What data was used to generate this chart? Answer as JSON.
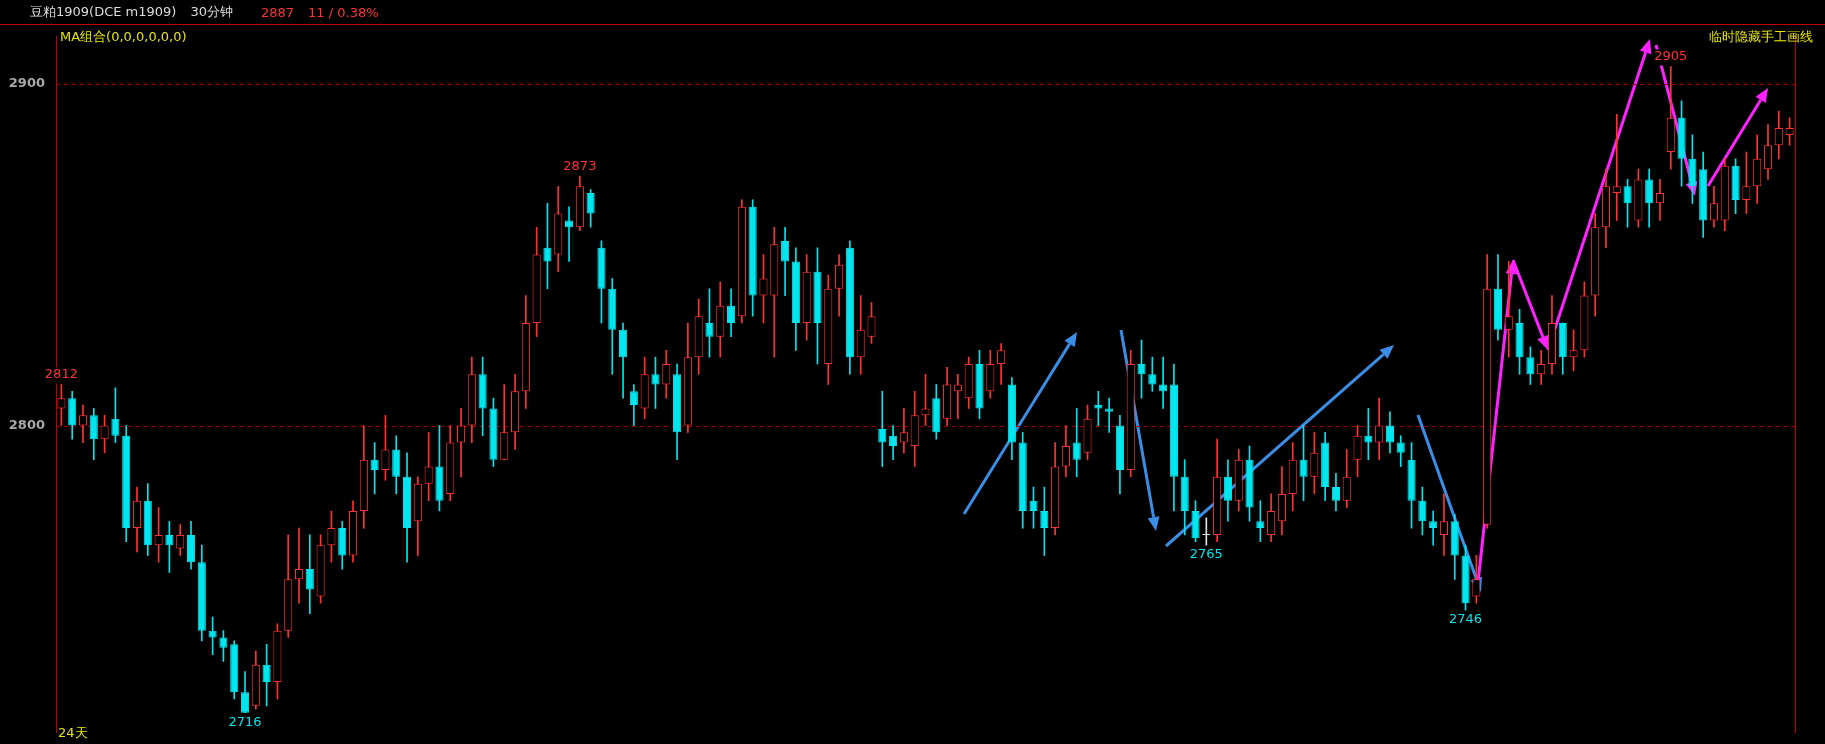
{
  "chart_data": {
    "type": "candlestick",
    "title": "豆粕1909(DCE m1909)",
    "subtitle": "30分钟",
    "annotations": [
      "2887",
      "11 / 0.38%",
      "MA组合(0,0,0,0,0,0)",
      "临时隐藏手工画线",
      "24天",
      {
        "text": "2812",
        "y": 2812
      },
      {
        "text": "2716",
        "y": 2716
      },
      {
        "text": "2873",
        "y": 2873
      },
      {
        "text": "2765",
        "y": 2765
      },
      {
        "text": "2746",
        "y": 2746
      },
      {
        "text": "2905",
        "y": 2905
      }
    ],
    "categories": [
      null,
      null,
      null,
      null,
      null,
      null,
      null,
      null,
      null,
      null,
      null,
      null,
      null,
      null,
      null,
      null,
      null,
      null,
      null,
      null,
      null,
      null,
      null,
      null,
      null,
      null,
      null,
      null,
      null,
      null,
      null,
      null,
      null,
      null,
      null,
      null,
      null,
      null,
      null,
      null,
      null,
      null,
      null,
      null,
      null,
      null,
      null,
      null,
      null,
      null,
      null,
      null,
      null,
      null,
      null,
      null,
      null,
      null,
      null,
      null,
      null,
      null,
      null,
      null,
      null,
      null,
      null,
      null,
      null,
      null,
      null,
      null,
      null,
      null,
      null,
      null,
      null,
      null,
      null,
      null,
      null,
      null,
      null,
      null,
      null,
      null,
      null,
      null,
      null,
      null,
      null,
      null,
      null,
      null,
      null,
      null,
      null,
      null,
      null,
      null,
      null,
      null,
      null,
      null,
      null,
      null,
      null,
      null,
      null,
      null,
      null,
      null,
      null,
      null,
      null,
      null,
      null,
      null,
      null,
      null,
      null,
      null,
      null,
      null,
      null,
      null,
      null,
      null,
      null,
      null,
      null,
      null,
      null,
      null,
      null,
      null,
      null,
      null,
      null,
      null,
      null,
      null,
      null,
      null,
      null,
      null,
      null,
      null,
      null,
      null,
      null,
      null,
      null,
      null,
      null,
      null,
      null,
      null,
      null,
      null,
      null
    ],
    "ohlc": [
      [
        2805,
        2812,
        2800,
        2808
      ],
      [
        2808,
        2810,
        2796,
        2800
      ],
      [
        2800,
        2806,
        2795,
        2803
      ],
      [
        2803,
        2805,
        2790,
        2796
      ],
      [
        2796,
        2803,
        2792,
        2800
      ],
      [
        2802,
        2811,
        2795,
        2797
      ],
      [
        2797,
        2800,
        2766,
        2770
      ],
      [
        2770,
        2782,
        2763,
        2778
      ],
      [
        2778,
        2783,
        2762,
        2765
      ],
      [
        2765,
        2776,
        2760,
        2768
      ],
      [
        2768,
        2772,
        2757,
        2765
      ],
      [
        2764,
        2771,
        2762,
        2768
      ],
      [
        2768,
        2772,
        2758,
        2760
      ],
      [
        2760,
        2765,
        2737,
        2740
      ],
      [
        2740,
        2744,
        2733,
        2738
      ],
      [
        2738,
        2740,
        2731,
        2735
      ],
      [
        2736,
        2737,
        2720,
        2722
      ],
      [
        2722,
        2728,
        2716,
        2716
      ],
      [
        2718,
        2734,
        2717,
        2730
      ],
      [
        2730,
        2736,
        2718,
        2725
      ],
      [
        2725,
        2742,
        2720,
        2740
      ],
      [
        2740,
        2768,
        2738,
        2755
      ],
      [
        2755,
        2770,
        2748,
        2758
      ],
      [
        2758,
        2768,
        2745,
        2752
      ],
      [
        2750,
        2768,
        2748,
        2765
      ],
      [
        2765,
        2775,
        2760,
        2770
      ],
      [
        2770,
        2772,
        2758,
        2762
      ],
      [
        2762,
        2778,
        2760,
        2775
      ],
      [
        2775,
        2800,
        2770,
        2790
      ],
      [
        2790,
        2795,
        2780,
        2787
      ],
      [
        2787,
        2803,
        2784,
        2793
      ],
      [
        2793,
        2797,
        2780,
        2785
      ],
      [
        2785,
        2792,
        2760,
        2770
      ],
      [
        2772,
        2785,
        2762,
        2783
      ],
      [
        2783,
        2798,
        2778,
        2788
      ],
      [
        2788,
        2800,
        2775,
        2778
      ],
      [
        2780,
        2800,
        2778,
        2795
      ],
      [
        2795,
        2805,
        2785,
        2800
      ],
      [
        2800,
        2820,
        2795,
        2815
      ],
      [
        2815,
        2820,
        2797,
        2805
      ],
      [
        2805,
        2808,
        2788,
        2790
      ],
      [
        2790,
        2812,
        2790,
        2798
      ],
      [
        2798,
        2815,
        2793,
        2810
      ],
      [
        2810,
        2838,
        2805,
        2830
      ],
      [
        2830,
        2858,
        2826,
        2850
      ],
      [
        2852,
        2865,
        2840,
        2848
      ],
      [
        2850,
        2870,
        2845,
        2862
      ],
      [
        2860,
        2864,
        2848,
        2858
      ],
      [
        2858,
        2873,
        2857,
        2870
      ],
      [
        2868,
        2869,
        2858,
        2862
      ],
      [
        2852,
        2854,
        2830,
        2840
      ],
      [
        2840,
        2843,
        2815,
        2828
      ],
      [
        2828,
        2830,
        2808,
        2820
      ],
      [
        2810,
        2812,
        2800,
        2806
      ],
      [
        2805,
        2820,
        2802,
        2815
      ],
      [
        2815,
        2820,
        2805,
        2812
      ],
      [
        2812,
        2822,
        2808,
        2818
      ],
      [
        2815,
        2818,
        2790,
        2798
      ],
      [
        2800,
        2830,
        2798,
        2820
      ],
      [
        2820,
        2837,
        2815,
        2832
      ],
      [
        2830,
        2840,
        2820,
        2826
      ],
      [
        2826,
        2842,
        2820,
        2835
      ],
      [
        2835,
        2840,
        2826,
        2830
      ],
      [
        2832,
        2866,
        2830,
        2864
      ],
      [
        2864,
        2866,
        2832,
        2838
      ],
      [
        2838,
        2850,
        2830,
        2843
      ],
      [
        2838,
        2858,
        2820,
        2853
      ],
      [
        2854,
        2858,
        2838,
        2848
      ],
      [
        2848,
        2852,
        2822,
        2830
      ],
      [
        2830,
        2850,
        2825,
        2845
      ],
      [
        2845,
        2852,
        2818,
        2830
      ],
      [
        2818,
        2844,
        2812,
        2840
      ],
      [
        2840,
        2850,
        2832,
        2847
      ],
      [
        2852,
        2854,
        2815,
        2820
      ],
      [
        2820,
        2838,
        2815,
        2828
      ],
      [
        2826,
        2836,
        2824,
        2832
      ],
      [
        2799,
        2810,
        2788,
        2795
      ],
      [
        2797,
        2800,
        2790,
        2794
      ],
      [
        2795,
        2805,
        2792,
        2798
      ],
      [
        2794,
        2810,
        2788,
        2803
      ],
      [
        2803,
        2815,
        2800,
        2805
      ],
      [
        2808,
        2812,
        2796,
        2798
      ],
      [
        2802,
        2817,
        2800,
        2812
      ],
      [
        2810,
        2815,
        2802,
        2812
      ],
      [
        2808,
        2820,
        2805,
        2818
      ],
      [
        2818,
        2822,
        2802,
        2805
      ],
      [
        2810,
        2822,
        2808,
        2818
      ],
      [
        2818,
        2824,
        2812,
        2822
      ],
      [
        2812,
        2814,
        2790,
        2795
      ],
      [
        2795,
        2798,
        2770,
        2775
      ],
      [
        2778,
        2782,
        2770,
        2775
      ],
      [
        2775,
        2782,
        2762,
        2770
      ],
      [
        2770,
        2795,
        2768,
        2788
      ],
      [
        2788,
        2800,
        2785,
        2794
      ],
      [
        2795,
        2805,
        2785,
        2790
      ],
      [
        2792,
        2806,
        2790,
        2802
      ],
      [
        2806,
        2810,
        2800,
        2805
      ],
      [
        2805,
        2808,
        2798,
        2804
      ],
      [
        2800,
        2803,
        2780,
        2787
      ],
      [
        2787,
        2822,
        2785,
        2818
      ],
      [
        2818,
        2825,
        2808,
        2815
      ],
      [
        2815,
        2820,
        2810,
        2812
      ],
      [
        2812,
        2820,
        2805,
        2810
      ],
      [
        2812,
        2818,
        2775,
        2785
      ],
      [
        2785,
        2790,
        2768,
        2775
      ],
      [
        2775,
        2778,
        2766,
        2767
      ],
      [
        2768,
        2773,
        2765,
        2768
      ],
      [
        2768,
        2796,
        2766,
        2785
      ],
      [
        2785,
        2790,
        2772,
        2778
      ],
      [
        2778,
        2793,
        2775,
        2790
      ],
      [
        2790,
        2794,
        2772,
        2776
      ],
      [
        2772,
        2778,
        2766,
        2770
      ],
      [
        2768,
        2780,
        2766,
        2775
      ],
      [
        2772,
        2788,
        2768,
        2780
      ],
      [
        2780,
        2795,
        2775,
        2790
      ],
      [
        2790,
        2800,
        2778,
        2785
      ],
      [
        2785,
        2798,
        2780,
        2792
      ],
      [
        2795,
        2798,
        2778,
        2782
      ],
      [
        2782,
        2786,
        2775,
        2778
      ],
      [
        2778,
        2793,
        2776,
        2785
      ],
      [
        2790,
        2800,
        2785,
        2797
      ],
      [
        2797,
        2805,
        2790,
        2795
      ],
      [
        2795,
        2808,
        2790,
        2800
      ],
      [
        2800,
        2804,
        2792,
        2795
      ],
      [
        2795,
        2797,
        2788,
        2792
      ],
      [
        2790,
        2795,
        2770,
        2778
      ],
      [
        2778,
        2782,
        2768,
        2772
      ],
      [
        2772,
        2775,
        2765,
        2770
      ],
      [
        2768,
        2780,
        2762,
        2772
      ],
      [
        2772,
        2774,
        2755,
        2762
      ],
      [
        2762,
        2765,
        2746,
        2748
      ],
      [
        2750,
        2762,
        2748,
        2755
      ],
      [
        2771,
        2850,
        2770,
        2840
      ],
      [
        2840,
        2850,
        2825,
        2828
      ],
      [
        2828,
        2848,
        2820,
        2832
      ],
      [
        2830,
        2834,
        2815,
        2820
      ],
      [
        2820,
        2823,
        2812,
        2815
      ],
      [
        2815,
        2822,
        2812,
        2818
      ],
      [
        2818,
        2838,
        2815,
        2830
      ],
      [
        2830,
        2830,
        2815,
        2820
      ],
      [
        2820,
        2828,
        2816,
        2822
      ],
      [
        2822,
        2842,
        2820,
        2838
      ],
      [
        2838,
        2862,
        2832,
        2858
      ],
      [
        2858,
        2875,
        2852,
        2870
      ],
      [
        2868,
        2891,
        2860,
        2870
      ],
      [
        2870,
        2872,
        2858,
        2865
      ],
      [
        2860,
        2875,
        2858,
        2872
      ],
      [
        2872,
        2875,
        2858,
        2865
      ],
      [
        2865,
        2872,
        2860,
        2868
      ],
      [
        2880,
        2905,
        2875,
        2890
      ],
      [
        2890,
        2895,
        2870,
        2878
      ],
      [
        2878,
        2885,
        2865,
        2870
      ],
      [
        2875,
        2880,
        2855,
        2860
      ],
      [
        2860,
        2870,
        2858,
        2865
      ],
      [
        2860,
        2878,
        2857,
        2876
      ],
      [
        2876,
        2878,
        2862,
        2866
      ],
      [
        2866,
        2880,
        2862,
        2870
      ],
      [
        2870,
        2885,
        2865,
        2878
      ],
      [
        2875,
        2888,
        2872,
        2882
      ],
      [
        2882,
        2892,
        2878,
        2887
      ],
      [
        2885,
        2890,
        2882,
        2887
      ]
    ],
    "ylim": [
      2710,
      2914
    ],
    "yticks": [
      2900,
      2800
    ],
    "grid": "y",
    "tick_labels": "y",
    "legend": false
  }
}
